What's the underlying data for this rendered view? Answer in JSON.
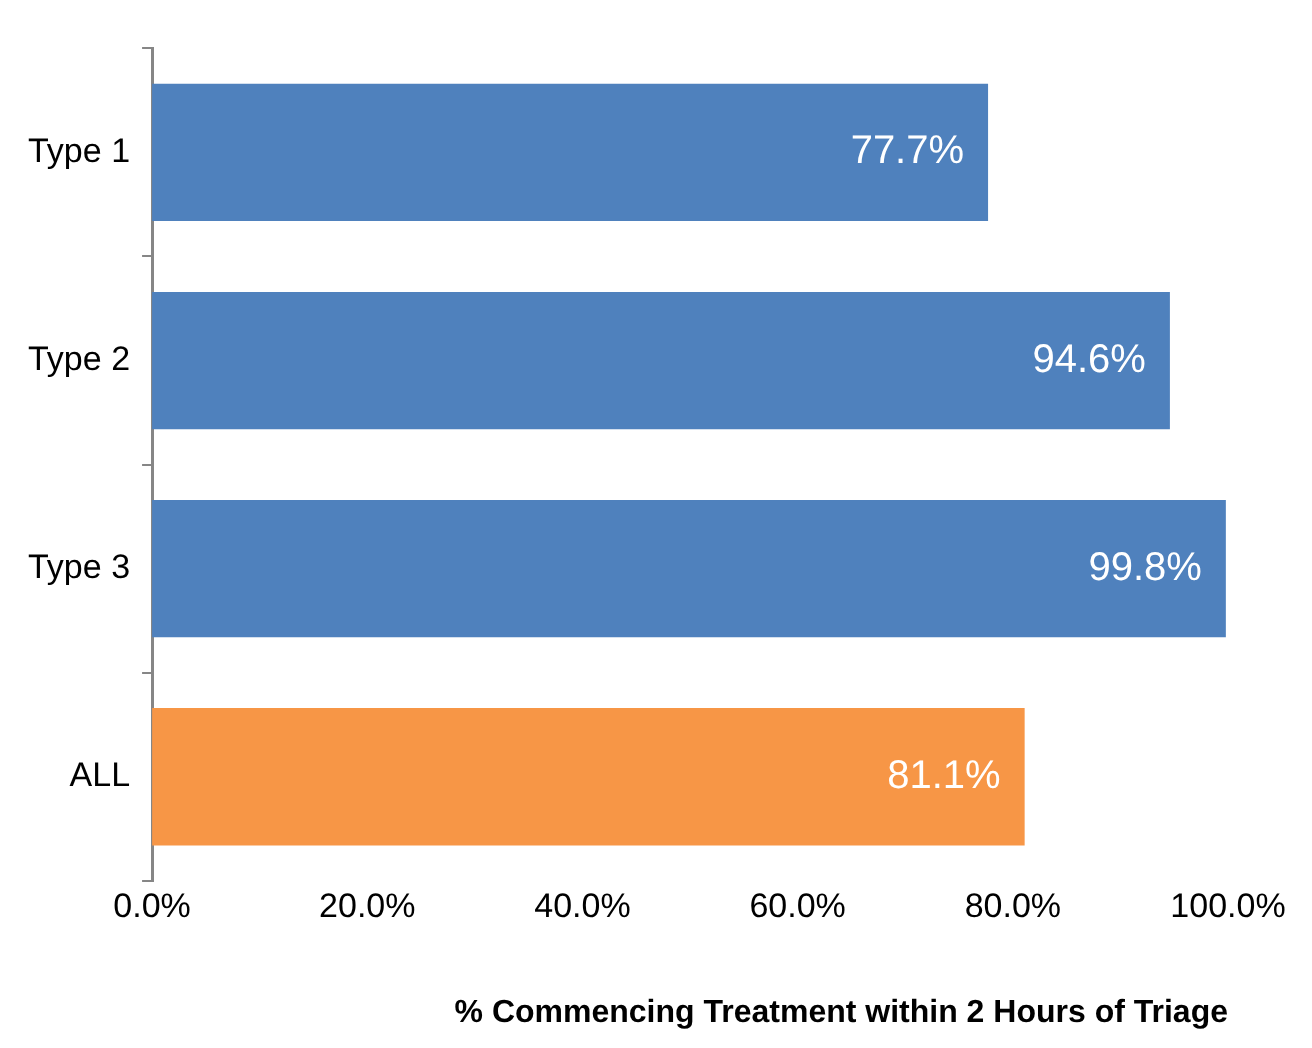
{
  "chart_data": {
    "type": "bar",
    "orientation": "horizontal",
    "xlabel": "% Commencing Treatment within 2 Hours of Triage",
    "categories": [
      "Type 1",
      "Type 2",
      "Type 3",
      "ALL"
    ],
    "values": [
      77.7,
      94.6,
      99.8,
      81.1
    ],
    "colors": [
      "#4f81bd",
      "#4f81bd",
      "#4f81bd",
      "#f79646"
    ],
    "value_labels": [
      "77.7%",
      "94.6%",
      "99.8%",
      "81.1%"
    ],
    "xlim": [
      0,
      100
    ],
    "xticks": [
      {
        "value": 0,
        "label": "0.0%"
      },
      {
        "value": 20,
        "label": "20.0%"
      },
      {
        "value": 40,
        "label": "40.0%"
      },
      {
        "value": 60,
        "label": "60.0%"
      },
      {
        "value": 80,
        "label": "80.0%"
      },
      {
        "value": 100,
        "label": "100.0%"
      }
    ],
    "grid": false,
    "legend": false
  }
}
